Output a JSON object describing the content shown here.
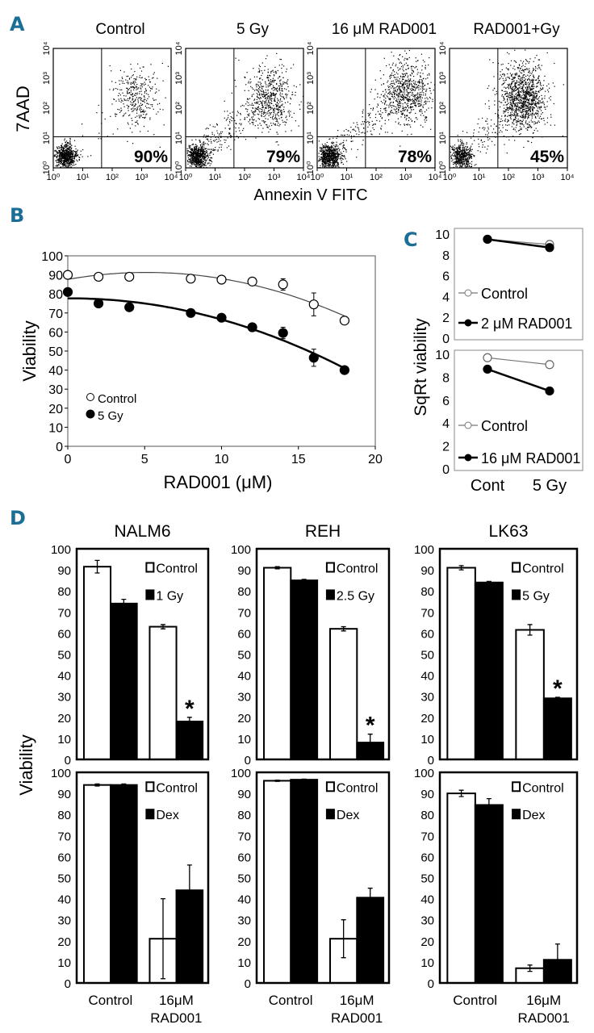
{
  "accent": "#1b6f97",
  "panel_labels": {
    "a": "A",
    "b": "B",
    "c": "C",
    "d": "D"
  },
  "chart_data": [
    {
      "panel": "A",
      "type": "scatter",
      "xlabel": "Annexin V FITC",
      "ylabel": "7AAD",
      "x_scale": "log",
      "y_scale": "log",
      "xlim": [
        1,
        10000
      ],
      "ylim": [
        1,
        10000
      ],
      "x_tick_labels": [
        "10⁰",
        "10¹",
        "10²",
        "10³",
        "10⁴"
      ],
      "y_tick_labels": [
        "10⁰",
        "10¹",
        "10²",
        "10³",
        "10⁴"
      ],
      "panels": [
        {
          "title": "Control",
          "percent_label": "90%"
        },
        {
          "title": "5 Gy",
          "percent_label": "79%"
        },
        {
          "title": "16 μM RAD001",
          "percent_label": "78%"
        },
        {
          "title": "RAD001+Gy",
          "percent_label": "45%"
        }
      ]
    },
    {
      "panel": "B",
      "type": "scatter",
      "xlabel": "RAD001 (μM)",
      "ylabel": "Viability",
      "xlim": [
        0,
        20
      ],
      "ylim": [
        0,
        100
      ],
      "x_ticks": [
        "0",
        "5",
        "10",
        "15",
        "20"
      ],
      "y_ticks": [
        "0",
        "10",
        "20",
        "30",
        "40",
        "50",
        "60",
        "70",
        "80",
        "90",
        "100"
      ],
      "fit": "quadratic",
      "legend_position": "bottom-left",
      "x": [
        0,
        2,
        4,
        8,
        10,
        12,
        14,
        16,
        18
      ],
      "series": [
        {
          "name": "Control",
          "marker": "open-circle",
          "values": [
            90,
            89,
            89,
            88,
            87.5,
            86.5,
            85,
            74.5,
            66
          ],
          "errors": [
            1,
            1.5,
            0.5,
            1.5,
            1,
            1,
            3,
            6,
            0.5
          ]
        },
        {
          "name": "5 Gy",
          "marker": "filled-circle",
          "values": [
            81,
            75,
            73,
            70,
            67.5,
            62.5,
            59.5,
            46.5,
            40
          ],
          "errors": [
            0.5,
            1,
            1,
            1,
            1,
            1,
            3,
            4.5,
            0.5
          ]
        }
      ]
    },
    {
      "panel": "C",
      "type": "line",
      "ylabel": "SqRt viability",
      "categories": [
        "Cont",
        "5 Gy"
      ],
      "ylim": [
        0,
        10
      ],
      "y_ticks": [
        "0",
        "2",
        "4",
        "6",
        "8",
        "10"
      ],
      "subplots": [
        {
          "series": [
            {
              "name": "Control",
              "marker": "open-circle",
              "values": [
                9.5,
                9.0
              ]
            },
            {
              "name": "2 μM RAD001",
              "marker": "filled-circle",
              "values": [
                9.5,
                8.7
              ]
            }
          ]
        },
        {
          "series": [
            {
              "name": "Control",
              "marker": "open-circle",
              "values": [
                9.7,
                9.1
              ]
            },
            {
              "name": "16 μM RAD001",
              "marker": "filled-circle",
              "values": [
                8.7,
                6.8
              ]
            }
          ]
        }
      ]
    },
    {
      "panel": "D",
      "type": "bar",
      "ylabel": "Viability",
      "ylim": [
        0,
        100
      ],
      "y_ticks": [
        "0",
        "10",
        "20",
        "30",
        "40",
        "50",
        "60",
        "70",
        "80",
        "90",
        "100"
      ],
      "series_colors": [
        "#ffffff",
        "#000000"
      ],
      "plots": [
        {
          "title": "NALM6",
          "legend": [
            "Control",
            "1 Gy"
          ],
          "category_labels": [],
          "groups": [
            {
              "values": [
                91.5,
                74
              ],
              "errors": [
                3,
                2
              ]
            },
            {
              "values": [
                63,
                18
              ],
              "errors": [
                1,
                2
              ]
            }
          ],
          "annotation": {
            "text": "*",
            "group": 1,
            "bar": 1
          }
        },
        {
          "title": "REH",
          "legend": [
            "Control",
            "2.5 Gy"
          ],
          "category_labels": [],
          "groups": [
            {
              "values": [
                91,
                85
              ],
              "errors": [
                0.5,
                0.5
              ]
            },
            {
              "values": [
                62,
                8
              ],
              "errors": [
                1,
                4
              ]
            }
          ],
          "annotation": {
            "text": "*",
            "group": 1,
            "bar": 1
          }
        },
        {
          "title": "LK63",
          "legend": [
            "Control",
            "5 Gy"
          ],
          "category_labels": [],
          "groups": [
            {
              "values": [
                91,
                84
              ],
              "errors": [
                1,
                0.5
              ]
            },
            {
              "values": [
                61.5,
                29
              ],
              "errors": [
                2.5,
                0.5
              ]
            }
          ],
          "annotation": {
            "text": "*",
            "group": 1,
            "bar": 1
          }
        },
        {
          "title": "",
          "legend": [
            "Control",
            "Dex"
          ],
          "category_labels": [
            [
              "Control"
            ],
            [
              "16μM",
              "RAD001"
            ]
          ],
          "groups": [
            {
              "values": [
                94,
                94
              ],
              "errors": [
                0.5,
                0.5
              ]
            },
            {
              "values": [
                21,
                44
              ],
              "errors": [
                19,
                12
              ]
            }
          ]
        },
        {
          "title": "",
          "legend": [
            "Control",
            "Dex"
          ],
          "category_labels": [
            [
              "Control"
            ],
            [
              "16μM",
              "RAD001"
            ]
          ],
          "groups": [
            {
              "values": [
                96,
                96.5
              ],
              "errors": [
                0.3,
                0.3
              ]
            },
            {
              "values": [
                21,
                40.5
              ],
              "errors": [
                9,
                4.5
              ]
            }
          ]
        },
        {
          "title": "",
          "legend": [
            "Control",
            "Dex"
          ],
          "category_labels": [
            [
              "Control"
            ],
            [
              "16μM",
              "RAD001"
            ]
          ],
          "groups": [
            {
              "values": [
                90,
                84.5
              ],
              "errors": [
                1.5,
                3
              ]
            },
            {
              "values": [
                7,
                11
              ],
              "errors": [
                1.5,
                7.5
              ]
            }
          ]
        }
      ]
    }
  ]
}
